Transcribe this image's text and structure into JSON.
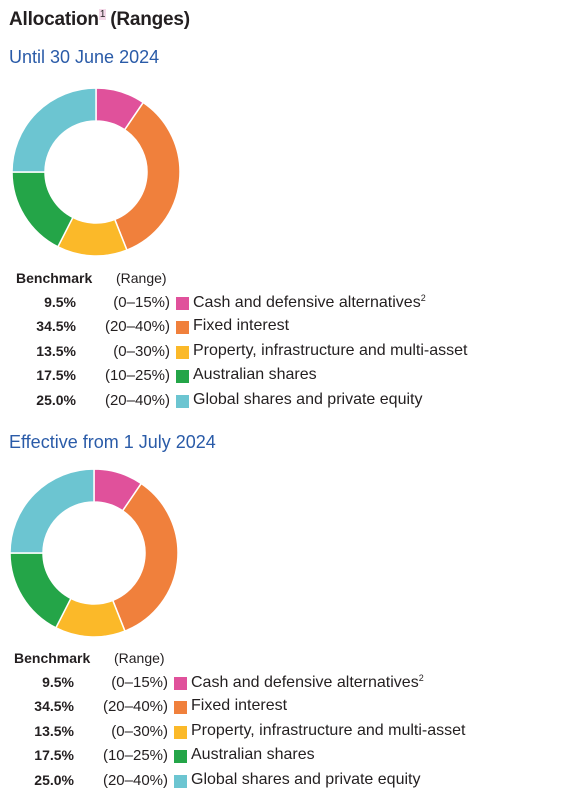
{
  "title": {
    "text": "Allocation",
    "footnote": "1",
    "suffix": "(Ranges)"
  },
  "colors": {
    "cash": "#e0519b",
    "fixed": "#f0803c",
    "property": "#fbb929",
    "australian": "#24a548",
    "global": "#6cc5d1"
  },
  "legend_header": {
    "benchmark": "Benchmark",
    "range": "(Range)"
  },
  "chart_data": [
    {
      "type": "pie",
      "donut": true,
      "title": "Until 30 June 2024",
      "categories": [
        "Cash and defensive alternatives",
        "Fixed interest",
        "Property, infrastructure and multi-asset",
        "Australian shares",
        "Global shares and private equity"
      ],
      "category_footnotes": [
        "2",
        "",
        "",
        "",
        ""
      ],
      "values": [
        9.5,
        34.5,
        13.5,
        17.5,
        25.0
      ],
      "value_labels": [
        "9.5%",
        "34.5%",
        "13.5%",
        "17.5%",
        "25.0%"
      ],
      "ranges": [
        "(0–15%)",
        "(20–40%)",
        "(0–30%)",
        "(10–25%)",
        "(20–40%)"
      ],
      "color_keys": [
        "cash",
        "fixed",
        "property",
        "australian",
        "global"
      ]
    },
    {
      "type": "pie",
      "donut": true,
      "title": "Effective from 1 July 2024",
      "categories": [
        "Cash and defensive alternatives",
        "Fixed interest",
        "Property, infrastructure and multi-asset",
        "Australian shares",
        "Global shares and private equity"
      ],
      "category_footnotes": [
        "2",
        "",
        "",
        "",
        ""
      ],
      "values": [
        9.5,
        34.5,
        13.5,
        17.5,
        25.0
      ],
      "value_labels": [
        "9.5%",
        "34.5%",
        "13.5%",
        "17.5%",
        "25.0%"
      ],
      "ranges": [
        "(0–15%)",
        "(20–40%)",
        "(0–30%)",
        "(10–25%)",
        "(20–40%)"
      ],
      "color_keys": [
        "cash",
        "fixed",
        "property",
        "australian",
        "global"
      ]
    }
  ]
}
